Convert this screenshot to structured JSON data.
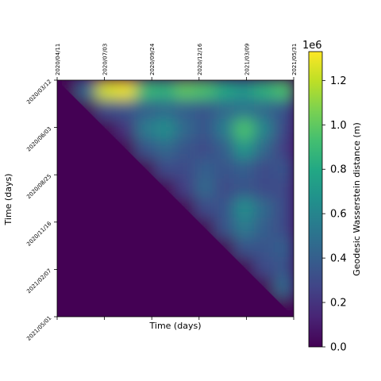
{
  "chart_data": {
    "type": "heatmap",
    "title": "",
    "xlabel": "Time (days)",
    "ylabel": "Time (days)",
    "x_tick_labels": [
      "2020/04/11",
      "2020/07/03",
      "2020/09/24",
      "2020/12/16",
      "2021/03/09",
      "2021/05/31"
    ],
    "y_tick_labels": [
      "2020/03/12",
      "2020/06/03",
      "2020/08/25",
      "2020/11/16",
      "2021/02/07",
      "2021/05/01"
    ],
    "colorbar": {
      "label": "Geodesic Wasserstein distance (m)",
      "multiplier": "1e6",
      "ticks": [
        "0.0",
        "0.2",
        "0.4",
        "0.6",
        "0.8",
        "1.0",
        "1.2"
      ],
      "tick_values": [
        0.0,
        0.2,
        0.4,
        0.6,
        0.8,
        1.0,
        1.2
      ],
      "range": [
        0.0,
        1.33
      ]
    },
    "colormap": "viridis",
    "grid": false,
    "matrix": "upper-triangular",
    "value_grid_1e6": [
      [
        0.0,
        0.45,
        1.25,
        1.3,
        0.9,
        0.85,
        1.0,
        0.95,
        0.8,
        0.7,
        0.85,
        0.95
      ],
      [
        0.0,
        0.0,
        0.3,
        0.35,
        0.4,
        0.45,
        0.4,
        0.35,
        0.45,
        0.5,
        0.45,
        0.35
      ],
      [
        0.0,
        0.0,
        0.0,
        0.2,
        0.55,
        0.65,
        0.45,
        0.35,
        0.55,
        0.95,
        0.6,
        0.3
      ],
      [
        0.0,
        0.0,
        0.0,
        0.0,
        0.35,
        0.45,
        0.35,
        0.3,
        0.4,
        0.7,
        0.45,
        0.25
      ],
      [
        0.0,
        0.0,
        0.0,
        0.0,
        0.0,
        0.3,
        0.3,
        0.4,
        0.35,
        0.4,
        0.3,
        0.35
      ],
      [
        0.0,
        0.0,
        0.0,
        0.0,
        0.0,
        0.0,
        0.25,
        0.45,
        0.3,
        0.35,
        0.3,
        0.3
      ],
      [
        0.0,
        0.0,
        0.0,
        0.0,
        0.0,
        0.0,
        0.0,
        0.3,
        0.35,
        0.65,
        0.45,
        0.3
      ],
      [
        0.0,
        0.0,
        0.0,
        0.0,
        0.0,
        0.0,
        0.0,
        0.0,
        0.35,
        0.55,
        0.4,
        0.3
      ],
      [
        0.0,
        0.0,
        0.0,
        0.0,
        0.0,
        0.0,
        0.0,
        0.0,
        0.0,
        0.35,
        0.35,
        0.4
      ],
      [
        0.0,
        0.0,
        0.0,
        0.0,
        0.0,
        0.0,
        0.0,
        0.0,
        0.0,
        0.0,
        0.3,
        0.35
      ],
      [
        0.0,
        0.0,
        0.0,
        0.0,
        0.0,
        0.0,
        0.0,
        0.0,
        0.0,
        0.0,
        0.0,
        0.45
      ],
      [
        0.0,
        0.0,
        0.0,
        0.0,
        0.0,
        0.0,
        0.0,
        0.0,
        0.0,
        0.0,
        0.0,
        0.0
      ]
    ]
  }
}
